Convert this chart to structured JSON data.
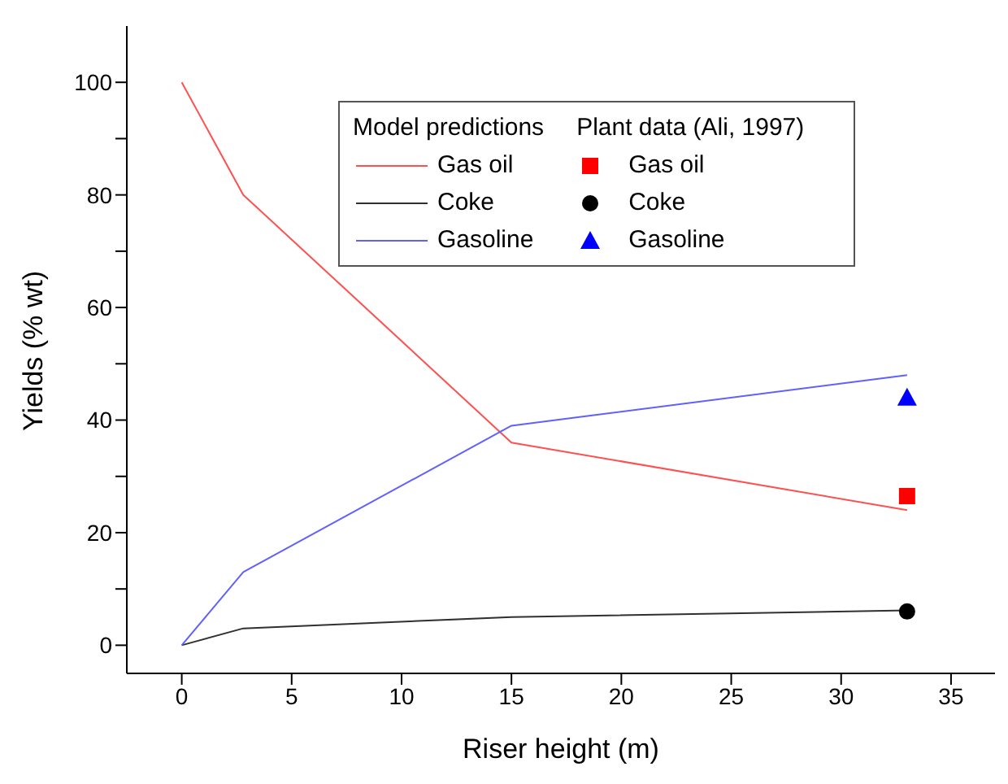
{
  "chart_data": {
    "type": "line",
    "xlabel": "Riser height (m)",
    "ylabel": "Yields (% wt)",
    "legend_title": "Model predictions",
    "annotations": [
      "Plant data (Ali, 1997)"
    ],
    "legend": "top right",
    "grid": false,
    "xlim": [
      -2.5,
      37
    ],
    "xticks": [
      0,
      5,
      10,
      15,
      20,
      25,
      30,
      35
    ],
    "ylim": [
      -5,
      110
    ],
    "yticks": [
      0,
      {
        "value": 10,
        "label": null
      },
      20,
      {
        "value": 30,
        "label": null
      },
      40,
      {
        "value": 50,
        "label": null
      },
      60,
      {
        "value": 70,
        "label": null
      },
      80,
      {
        "value": 90,
        "label": null
      },
      100
    ],
    "series": [
      {
        "name": "Gas oil",
        "color": "#ff5050",
        "x": [
          0,
          2.8,
          15,
          33
        ],
        "values": [
          100,
          80,
          36,
          24
        ]
      },
      {
        "name": "Coke",
        "color": "#303030",
        "x": [
          0,
          2.8,
          15,
          33
        ],
        "values": [
          0,
          3,
          5,
          6.2
        ]
      },
      {
        "name": "Gasoline",
        "color": "#6060ff",
        "x": [
          0,
          2.8,
          15,
          33
        ],
        "values": [
          0,
          13,
          39,
          48
        ]
      },
      {
        "name": "Gas oil",
        "type": "scatter",
        "marker": "square",
        "color": "#ff0000",
        "x": [
          33
        ],
        "values": [
          26.5
        ]
      },
      {
        "name": "Coke",
        "type": "scatter",
        "marker": "circle",
        "color": "#000000",
        "x": [
          33
        ],
        "values": [
          6
        ]
      },
      {
        "name": "Gasoline",
        "type": "scatter",
        "marker": "triangle",
        "color": "#0000ff",
        "x": [
          33
        ],
        "values": [
          44
        ]
      }
    ]
  }
}
